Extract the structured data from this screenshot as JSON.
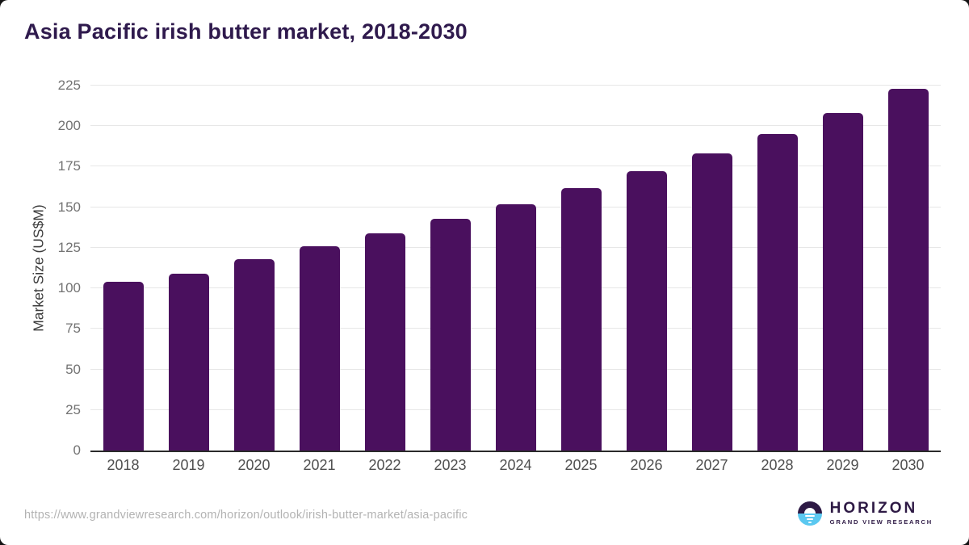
{
  "page": {
    "source_url": "https://www.grandviewresearch.com/horizon/outlook/irish-butter-market/asia-pacific"
  },
  "logo": {
    "name": "HORIZON",
    "subtitle": "GRAND VIEW RESEARCH",
    "purple": "#2e1a45",
    "blue": "#5bc8f0"
  },
  "colors": {
    "bar": "#4a105e",
    "title": "#2f1a4d",
    "axis_line": "#2a2a2a",
    "gridline": "#e7e7e7"
  },
  "chart_data": {
    "type": "bar",
    "title": "Asia Pacific irish butter market, 2018-2030",
    "categories": [
      "2018",
      "2019",
      "2020",
      "2021",
      "2022",
      "2023",
      "2024",
      "2025",
      "2026",
      "2027",
      "2028",
      "2029",
      "2030"
    ],
    "values": [
      104,
      109,
      118,
      126,
      134,
      143,
      152,
      162,
      172,
      183,
      195,
      208,
      223
    ],
    "xlabel": "",
    "ylabel": "Market Size (US$M)",
    "ylim": [
      0,
      225
    ],
    "ytick_step": 25,
    "grid": true,
    "legend": false,
    "bar_color": "#4a105e"
  }
}
